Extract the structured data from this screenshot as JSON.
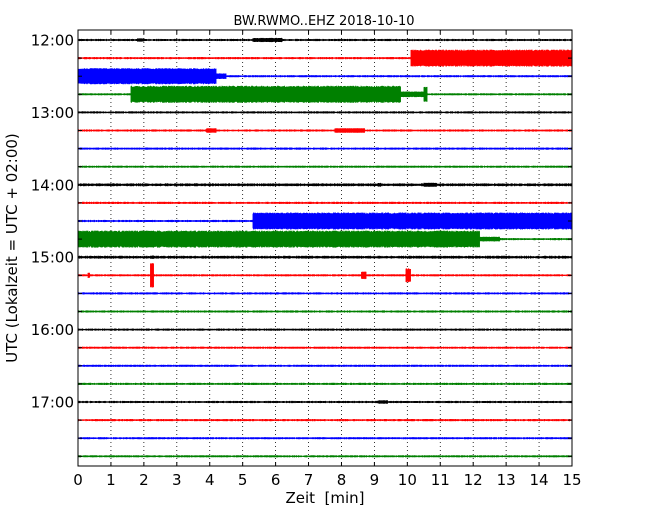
{
  "chart_data": {
    "type": "line",
    "title": "BW.RWMO..EHZ 2018-10-10",
    "xlabel": "Zeit  [min]",
    "ylabel": "UTC (Lokalzeit = UTC + 02:00)",
    "xlim": [
      0,
      15
    ],
    "x_ticks": [
      "0",
      "1",
      "2",
      "3",
      "4",
      "5",
      "6",
      "7",
      "8",
      "9",
      "10",
      "11",
      "12",
      "13",
      "14",
      "15"
    ],
    "y_tick_labels": [
      "12:00",
      "13:00",
      "14:00",
      "15:00",
      "16:00",
      "17:00"
    ],
    "trace_interval_minutes": 15,
    "first_trace_start": "12:00",
    "trace_color_cycle": [
      "#000000",
      "#ff0000",
      "#0000ff",
      "#008000"
    ],
    "grid": "vertical dotted at each minute",
    "traces": [
      {
        "start": "12:00",
        "color": "#000000",
        "base_amplitude": 1.0,
        "events": [
          {
            "from": 5.3,
            "to": 6.2,
            "amp": 2.2
          },
          {
            "from": 1.8,
            "to": 2.0,
            "amp": 1.8
          }
        ]
      },
      {
        "start": "12:15",
        "color": "#ff0000",
        "base_amplitude": 1.0,
        "events": [
          {
            "from": 10.1,
            "to": 15.0,
            "amp": 9.0
          }
        ]
      },
      {
        "start": "12:30",
        "color": "#0000ff",
        "base_amplitude": 1.0,
        "events": [
          {
            "from": 0.0,
            "to": 4.2,
            "amp": 8.5
          },
          {
            "from": 4.2,
            "to": 4.5,
            "amp": 3.0
          }
        ]
      },
      {
        "start": "12:45",
        "color": "#008000",
        "base_amplitude": 1.0,
        "events": [
          {
            "from": 1.6,
            "to": 9.8,
            "amp": 9.0
          },
          {
            "from": 9.8,
            "to": 10.5,
            "amp": 3.0
          },
          {
            "from": 10.5,
            "to": 10.6,
            "amp": 8.0
          }
        ]
      },
      {
        "start": "13:00",
        "color": "#000000",
        "base_amplitude": 1.0,
        "events": []
      },
      {
        "start": "13:15",
        "color": "#ff0000",
        "base_amplitude": 1.0,
        "events": [
          {
            "from": 3.9,
            "to": 4.2,
            "amp": 2.5
          },
          {
            "from": 7.8,
            "to": 8.7,
            "amp": 2.5
          }
        ]
      },
      {
        "start": "13:30",
        "color": "#0000ff",
        "base_amplitude": 1.0,
        "events": []
      },
      {
        "start": "13:45",
        "color": "#008000",
        "base_amplitude": 1.0,
        "events": []
      },
      {
        "start": "14:00",
        "color": "#000000",
        "base_amplitude": 1.3,
        "events": [
          {
            "from": 10.5,
            "to": 10.9,
            "amp": 2.2
          },
          {
            "from": 9.1,
            "to": 9.2,
            "amp": 2.0
          }
        ]
      },
      {
        "start": "14:15",
        "color": "#ff0000",
        "base_amplitude": 1.0,
        "events": []
      },
      {
        "start": "14:30",
        "color": "#0000ff",
        "base_amplitude": 1.0,
        "events": [
          {
            "from": 5.3,
            "to": 15.0,
            "amp": 9.0
          }
        ]
      },
      {
        "start": "14:45",
        "color": "#008000",
        "base_amplitude": 1.0,
        "events": [
          {
            "from": 0.0,
            "to": 12.2,
            "amp": 9.0
          },
          {
            "from": 12.2,
            "to": 12.8,
            "amp": 2.5
          }
        ]
      },
      {
        "start": "15:00",
        "color": "#000000",
        "base_amplitude": 1.3,
        "events": [
          {
            "from": 2.2,
            "to": 2.3,
            "amp": 1.8
          }
        ]
      },
      {
        "start": "15:15",
        "color": "#ff0000",
        "base_amplitude": 1.0,
        "events": [
          {
            "from": 2.2,
            "to": 2.3,
            "amp": 14.0
          },
          {
            "from": 0.3,
            "to": 0.35,
            "amp": 3.0
          },
          {
            "from": 8.6,
            "to": 8.75,
            "amp": 4.0
          },
          {
            "from": 9.95,
            "to": 10.1,
            "amp": 7.5
          }
        ]
      },
      {
        "start": "15:30",
        "color": "#0000ff",
        "base_amplitude": 1.0,
        "events": []
      },
      {
        "start": "15:45",
        "color": "#008000",
        "base_amplitude": 1.0,
        "events": []
      },
      {
        "start": "16:00",
        "color": "#000000",
        "base_amplitude": 1.0,
        "events": []
      },
      {
        "start": "16:15",
        "color": "#ff0000",
        "base_amplitude": 1.0,
        "events": []
      },
      {
        "start": "16:30",
        "color": "#0000ff",
        "base_amplitude": 1.0,
        "events": []
      },
      {
        "start": "16:45",
        "color": "#008000",
        "base_amplitude": 1.0,
        "events": []
      },
      {
        "start": "17:00",
        "color": "#000000",
        "base_amplitude": 1.0,
        "events": [
          {
            "from": 9.1,
            "to": 9.4,
            "amp": 1.8
          }
        ]
      },
      {
        "start": "17:15",
        "color": "#ff0000",
        "base_amplitude": 1.0,
        "events": []
      },
      {
        "start": "17:30",
        "color": "#0000ff",
        "base_amplitude": 1.0,
        "events": []
      },
      {
        "start": "17:45",
        "color": "#008000",
        "base_amplitude": 1.0,
        "events": []
      }
    ]
  }
}
